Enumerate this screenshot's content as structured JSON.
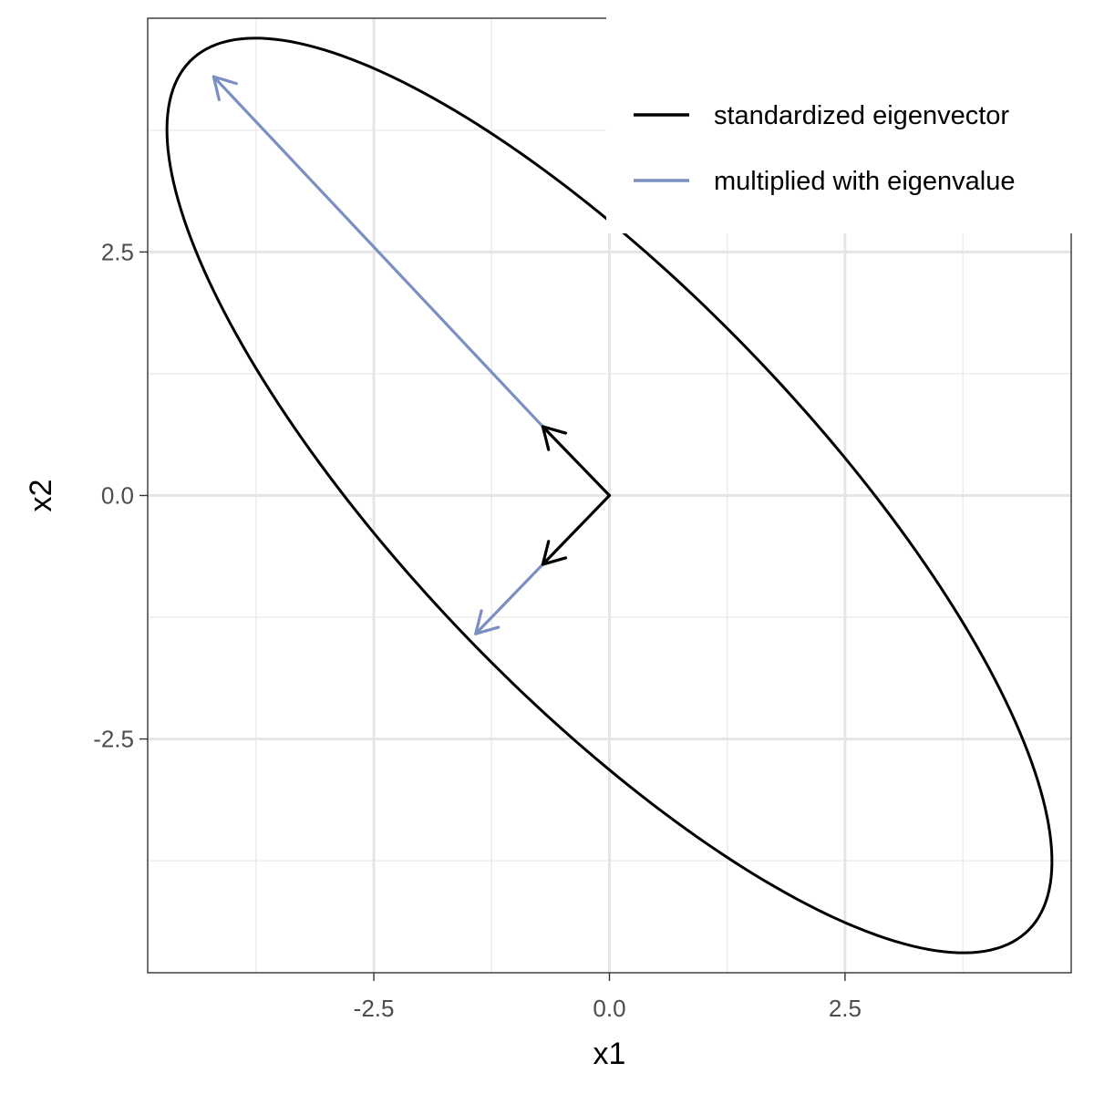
{
  "chart_data": {
    "type": "line",
    "title": "",
    "xlabel": "x1",
    "ylabel": "x2",
    "xlim": [
      -4.9,
      4.9
    ],
    "ylim": [
      -4.9,
      4.9
    ],
    "x_ticks": [
      -2.5,
      0.0,
      2.5
    ],
    "x_tick_labels": [
      "-2.5",
      "0.0",
      "2.5"
    ],
    "y_ticks": [
      -2.5,
      0.0,
      2.5
    ],
    "y_tick_labels": [
      "-2.5",
      "0.0",
      "2.5"
    ],
    "x_minor_ticks": [
      -3.75,
      -1.25,
      1.25,
      3.75
    ],
    "y_minor_ticks": [
      -3.75,
      -1.25,
      1.25,
      3.75
    ],
    "grid": true,
    "legend_position": "top-right",
    "ellipse": {
      "center": [
        0,
        0
      ],
      "major_direction": [
        -0.7071,
        0.7071
      ],
      "major_semi_axis": 6.3,
      "minor_semi_axis": 2.1,
      "color": "#000000"
    },
    "series": [
      {
        "name": "standardized eigenvector",
        "color": "#000000",
        "arrows": [
          {
            "from": [
              0,
              0
            ],
            "to": [
              -0.7071,
              0.7071
            ]
          },
          {
            "from": [
              0,
              0
            ],
            "to": [
              -0.7071,
              -0.7071
            ]
          }
        ]
      },
      {
        "name": "multiplied with eigenvalue",
        "color": "#7b8fc1",
        "arrows": [
          {
            "from": [
              -0.7071,
              0.7071
            ],
            "to": [
              -4.2,
              4.3
            ]
          },
          {
            "from": [
              -0.7071,
              -0.7071
            ],
            "to": [
              -1.42,
              -1.42
            ]
          }
        ]
      }
    ]
  }
}
